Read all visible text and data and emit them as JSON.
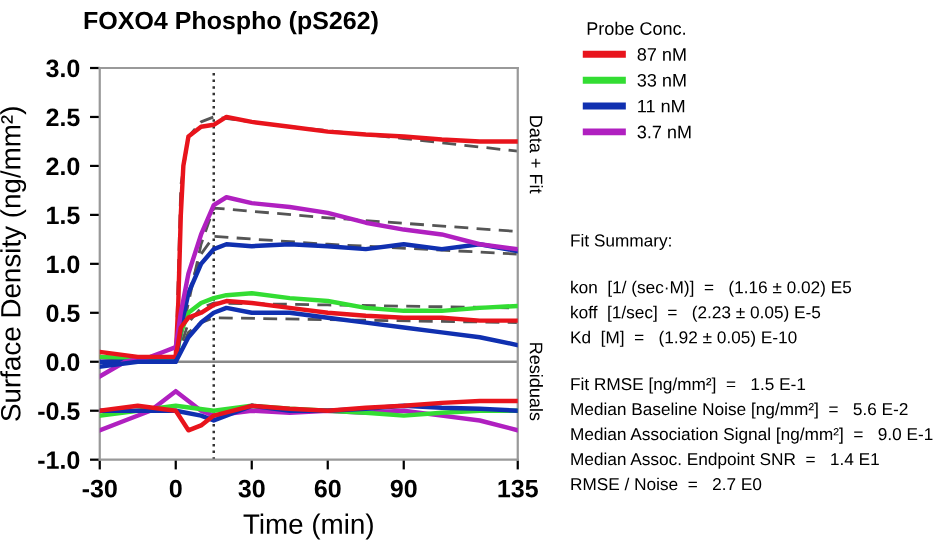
{
  "chart_data": {
    "type": "line",
    "title": "FOXO4 Phospho (pS262)",
    "xlabel": "Time (min)",
    "ylabel": "Surface Density (ng/mm²)",
    "legend_title": "Probe Conc.",
    "legend": "right",
    "xlim": [
      -30,
      135
    ],
    "xticks": [
      -30,
      0,
      30,
      60,
      90,
      135
    ],
    "ylim": [
      -1.0,
      3.0
    ],
    "yticks": [
      {
        "value": -1.0,
        "label": "-1.0"
      },
      {
        "value": -0.5,
        "label": "-0.5"
      },
      {
        "value": 0.0,
        "label": "0.0"
      },
      {
        "value": 0.5,
        "label": "0.5"
      },
      {
        "value": 1.0,
        "label": "1.0"
      },
      {
        "value": 1.5,
        "label": "1.5"
      },
      {
        "value": 2.0,
        "label": "2.0"
      },
      {
        "value": 2.5,
        "label": "2.5"
      },
      {
        "value": 3.0,
        "label": "3.0"
      }
    ],
    "grid": false,
    "marker": "none",
    "series": [
      {
        "name": "87 nM",
        "color": "#e8141c",
        "x": [
          -30,
          -20,
          -10,
          -5,
          0,
          1,
          2,
          3,
          5,
          10,
          15,
          20,
          30,
          45,
          60,
          75,
          90,
          105,
          120,
          135
        ],
        "values": [
          0.05,
          0.03,
          0.0,
          0.0,
          0.05,
          0.6,
          1.5,
          2.0,
          2.3,
          2.4,
          2.42,
          2.5,
          2.45,
          2.4,
          2.35,
          2.32,
          2.3,
          2.27,
          2.25,
          2.25
        ]
      },
      {
        "name": "33 nM",
        "color": "#33dd33",
        "x": [
          -30,
          -15,
          0,
          2,
          5,
          10,
          15,
          20,
          30,
          45,
          60,
          75,
          90,
          105,
          120,
          135
        ],
        "values": [
          0.05,
          0.03,
          0.02,
          0.3,
          0.5,
          0.6,
          0.65,
          0.68,
          0.7,
          0.65,
          0.62,
          0.55,
          0.52,
          0.52,
          0.55,
          0.57
        ]
      },
      {
        "name": "11 nM",
        "color": "#1030b0",
        "x": [
          -30,
          -15,
          0,
          2,
          5,
          10,
          15,
          20,
          30,
          45,
          60,
          75,
          90,
          105,
          120,
          135
        ],
        "values": [
          0.0,
          0.0,
          0.0,
          0.35,
          0.7,
          1.0,
          1.15,
          1.2,
          1.18,
          1.2,
          1.18,
          1.15,
          1.2,
          1.15,
          1.2,
          1.13
        ]
      },
      {
        "name": "3.7 nM",
        "color": "#b020c0",
        "x": [
          -30,
          -20,
          -10,
          -5,
          0,
          2,
          5,
          10,
          15,
          20,
          30,
          45,
          60,
          75,
          90,
          105,
          120,
          135
        ],
        "values": [
          -0.15,
          0.0,
          0.05,
          0.1,
          0.15,
          0.5,
          0.9,
          1.3,
          1.6,
          1.68,
          1.62,
          1.58,
          1.52,
          1.42,
          1.35,
          1.3,
          1.2,
          1.15
        ]
      },
      {
        "color": "#e8141c",
        "x": [
          -30,
          -15,
          0,
          2,
          5,
          10,
          15,
          20,
          30,
          45,
          60,
          75,
          90,
          105,
          120,
          135
        ],
        "values": [
          0.1,
          0.05,
          0.05,
          0.35,
          0.45,
          0.5,
          0.58,
          0.62,
          0.6,
          0.55,
          0.5,
          0.47,
          0.45,
          0.45,
          0.42,
          0.42
        ]
      },
      {
        "color": "#1030b0",
        "x": [
          -30,
          -15,
          0,
          2,
          5,
          10,
          15,
          20,
          30,
          45,
          60,
          75,
          90,
          105,
          120,
          135
        ],
        "values": [
          -0.05,
          0.0,
          0.0,
          0.1,
          0.25,
          0.4,
          0.5,
          0.55,
          0.5,
          0.5,
          0.45,
          0.4,
          0.35,
          0.3,
          0.25,
          0.17
        ]
      },
      {
        "color": "#555555",
        "line_style": "dashed",
        "x": [
          0,
          2,
          5,
          10,
          15,
          45,
          90,
          135
        ],
        "values": [
          0.0,
          1.8,
          2.3,
          2.45,
          2.5,
          2.4,
          2.28,
          2.15
        ]
      },
      {
        "color": "#555555",
        "line_style": "dashed",
        "x": [
          0,
          5,
          10,
          15,
          60,
          135
        ],
        "values": [
          0.0,
          0.6,
          1.2,
          1.57,
          1.47,
          1.33
        ]
      },
      {
        "color": "#555555",
        "line_style": "dashed",
        "x": [
          0,
          5,
          10,
          15,
          60,
          135
        ],
        "values": [
          0.0,
          0.7,
          1.1,
          1.28,
          1.2,
          1.1
        ]
      },
      {
        "color": "#555555",
        "line_style": "dashed",
        "x": [
          0,
          5,
          10,
          15,
          60,
          135
        ],
        "values": [
          0.0,
          0.4,
          0.55,
          0.6,
          0.58,
          0.55
        ]
      },
      {
        "color": "#555555",
        "line_style": "dashed",
        "x": [
          0,
          5,
          10,
          15,
          60,
          135
        ],
        "values": [
          0.0,
          0.3,
          0.4,
          0.45,
          0.43,
          0.4
        ]
      },
      {
        "color": "#b020c0",
        "x": [
          -30,
          -20,
          -10,
          0,
          5,
          10,
          15,
          30,
          45,
          60,
          75,
          90,
          105,
          120,
          135
        ],
        "values": [
          -0.7,
          -0.6,
          -0.5,
          -0.3,
          -0.4,
          -0.5,
          -0.55,
          -0.5,
          -0.52,
          -0.5,
          -0.52,
          -0.5,
          -0.55,
          -0.6,
          -0.7
        ]
      },
      {
        "color": "#33dd33",
        "x": [
          -30,
          -15,
          0,
          15,
          30,
          45,
          60,
          75,
          90,
          105,
          120,
          135
        ],
        "values": [
          -0.55,
          -0.5,
          -0.45,
          -0.5,
          -0.45,
          -0.48,
          -0.5,
          -0.52,
          -0.55,
          -0.52,
          -0.5,
          -0.5
        ]
      },
      {
        "color": "#1030b0",
        "x": [
          -30,
          -15,
          0,
          10,
          15,
          30,
          45,
          60,
          75,
          90,
          105,
          120,
          135
        ],
        "values": [
          -0.5,
          -0.5,
          -0.5,
          -0.55,
          -0.6,
          -0.45,
          -0.5,
          -0.5,
          -0.48,
          -0.45,
          -0.47,
          -0.48,
          -0.5
        ]
      },
      {
        "color": "#e8141c",
        "x": [
          -30,
          -15,
          0,
          5,
          10,
          15,
          30,
          45,
          60,
          75,
          90,
          105,
          120,
          135
        ],
        "values": [
          -0.5,
          -0.45,
          -0.5,
          -0.7,
          -0.65,
          -0.55,
          -0.45,
          -0.48,
          -0.5,
          -0.47,
          -0.45,
          -0.42,
          -0.4,
          -0.4
        ]
      }
    ],
    "ref_lines": [
      {
        "axis": "x",
        "value": 15,
        "color": "#333333",
        "line_style": "dotted"
      },
      {
        "axis": "y",
        "value": 0,
        "color": "#888888",
        "line_style": "solid"
      }
    ],
    "annotations": [
      "Data + Fit",
      "Residuals",
      "Fit Summary:",
      "kon  [1/ (sec·M)]  =   (1.16 ± 0.02) E5",
      "koff  [1/sec]  =   (2.23 ± 0.05) E-5",
      "Kd  [M]  =   (1.92 ± 0.05) E-10",
      "Fit RMSE [ng/mm²]  =   1.5 E-1",
      "Median Baseline Noise [ng/mm²]  =   5.6 E-2",
      "Median Association Signal [ng/mm²]  =   9.0 E-1",
      "Median Assoc. Endpoint SNR  =   1.4 E1",
      "RMSE / Noise  =   2.7 E0"
    ]
  }
}
